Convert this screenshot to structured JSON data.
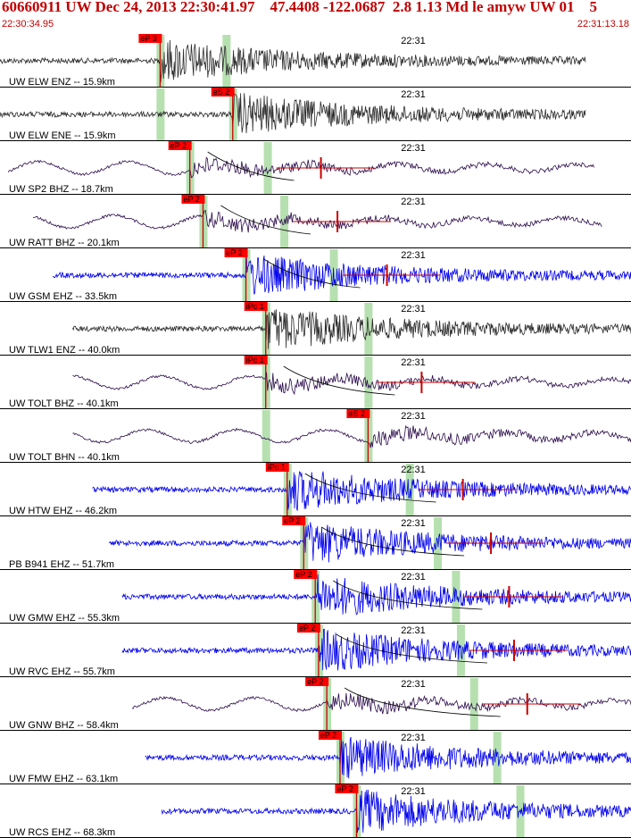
{
  "header": {
    "title": "60660911 UW Dec 24, 2013 22:30:41.97    47.4408 -122.0687  2.8 1.13 Md le amyw UW 01    5",
    "start_time": "22:30:34.95",
    "end_time": "22:31:13.18"
  },
  "colors": {
    "header_text": "#c00000",
    "trace_black": "#2b2b2b",
    "trace_purple": "#2a0a4a",
    "trace_blue": "#0000ee",
    "pick_box": "#ff0000",
    "pick_line": "#cc0000",
    "window_band": "#b7e0b0",
    "divider": "#000000"
  },
  "chart_data": {
    "type": "seismogram",
    "x_unit": "time",
    "start_time": "22:30:34.95",
    "end_time": "22:31:13.18",
    "minute_mark": "22:31",
    "traces": [
      {
        "label": "UW ELW ENZ -- 15.9km",
        "color": "black",
        "style": "noise",
        "pick": "eP 3",
        "pick_t": 9.7,
        "win1": 9.7,
        "win2": 13.7,
        "t_start": 0.0,
        "t_end": 35.5,
        "env": false,
        "dur": false
      },
      {
        "label": "UW ELW ENE -- 15.9km",
        "color": "black",
        "style": "noise",
        "pick": "eS 2",
        "pick_t": 14.1,
        "win1": 9.7,
        "win2": 14.1,
        "t_start": 0.0,
        "t_end": 35.5,
        "env": false,
        "dur": false
      },
      {
        "label": "UW SP2 BHZ -- 18.7km",
        "color": "purple",
        "style": "wave",
        "pick": "eP 2",
        "pick_t": 11.5,
        "win1": 11.5,
        "win2": 16.2,
        "t_start": 0.5,
        "t_end": 36.0,
        "env": true,
        "dur": true
      },
      {
        "label": "UW RATT BHZ -- 20.1km",
        "color": "purple",
        "style": "wave",
        "pick": "eP 2",
        "pick_t": 12.3,
        "win1": 12.3,
        "win2": 17.2,
        "t_start": 2.0,
        "t_end": 36.5,
        "env": true,
        "dur": true
      },
      {
        "label": "UW GSM EHZ -- 33.5km",
        "color": "blue",
        "style": "noise",
        "pick": "eP 2",
        "pick_t": 14.9,
        "win1": 14.9,
        "win2": 20.2,
        "t_start": 3.2,
        "t_end": 38.8,
        "env": true,
        "dur": true
      },
      {
        "label": "UW TLW1 ENZ -- 40.0km",
        "color": "black",
        "style": "noise",
        "pick": "iPc 1",
        "pick_t": 16.1,
        "win1": 16.1,
        "win2": 22.3,
        "t_start": 4.4,
        "t_end": 40.0,
        "env": false,
        "dur": false
      },
      {
        "label": "UW TOLT BHZ -- 40.1km",
        "color": "purple",
        "style": "wave",
        "pick": "iPc 1",
        "pick_t": 16.1,
        "win1": 16.1,
        "win2": 22.3,
        "t_start": 4.4,
        "t_end": 40.0,
        "env": true,
        "dur": true
      },
      {
        "label": "UW TOLT BHN -- 40.1km",
        "color": "purple",
        "style": "wave",
        "pick": "eS 2",
        "pick_t": 22.3,
        "win1": 16.1,
        "win2": 22.3,
        "t_start": 4.4,
        "t_end": 40.0,
        "env": false,
        "dur": false
      },
      {
        "label": "UW HTW EHZ -- 46.2km",
        "color": "blue",
        "style": "noise",
        "pick": "iPc 1",
        "pick_t": 17.4,
        "win1": 17.4,
        "win2": 24.8,
        "t_start": 5.6,
        "t_end": 41.0,
        "env": true,
        "dur": true
      },
      {
        "label": "PB B941 EHZ -- 51.7km",
        "color": "blue",
        "style": "noise",
        "pick": "eP 2",
        "pick_t": 18.4,
        "win1": 18.4,
        "win2": 26.5,
        "t_start": 6.6,
        "t_end": 42.2,
        "env": true,
        "dur": true
      },
      {
        "label": "UW GMW EHZ -- 55.3km",
        "color": "blue",
        "style": "noise",
        "pick": "eP 2",
        "pick_t": 19.1,
        "win1": 19.1,
        "win2": 27.6,
        "t_start": 7.4,
        "t_end": 42.8,
        "env": true,
        "dur": true
      },
      {
        "label": "UW RVC EHZ -- 55.7km",
        "color": "blue",
        "style": "noise",
        "pick": "eP 2",
        "pick_t": 19.3,
        "win1": 19.3,
        "win2": 27.9,
        "t_start": 7.4,
        "t_end": 42.8,
        "env": true,
        "dur": true
      },
      {
        "label": "UW GNW BHZ -- 58.4km",
        "color": "purple",
        "style": "wave",
        "pick": "eP 2",
        "pick_t": 19.8,
        "win1": 19.8,
        "win2": 28.7,
        "t_start": 8.0,
        "t_end": 43.6,
        "env": true,
        "dur": true
      },
      {
        "label": "UW FMW EHZ -- 63.1km",
        "color": "blue",
        "style": "noise",
        "pick": "eP 2",
        "pick_t": 20.6,
        "win1": 20.6,
        "win2": 30.1,
        "t_start": 8.8,
        "t_end": 44.3,
        "env": false,
        "dur": false
      },
      {
        "label": "UW RCS EHZ -- 68.3km",
        "color": "blue",
        "style": "noise",
        "pick": "eP 2",
        "pick_t": 21.6,
        "win1": 21.6,
        "win2": 31.5,
        "t_start": 9.8,
        "t_end": 45.0,
        "env": false,
        "dur": false
      }
    ]
  }
}
